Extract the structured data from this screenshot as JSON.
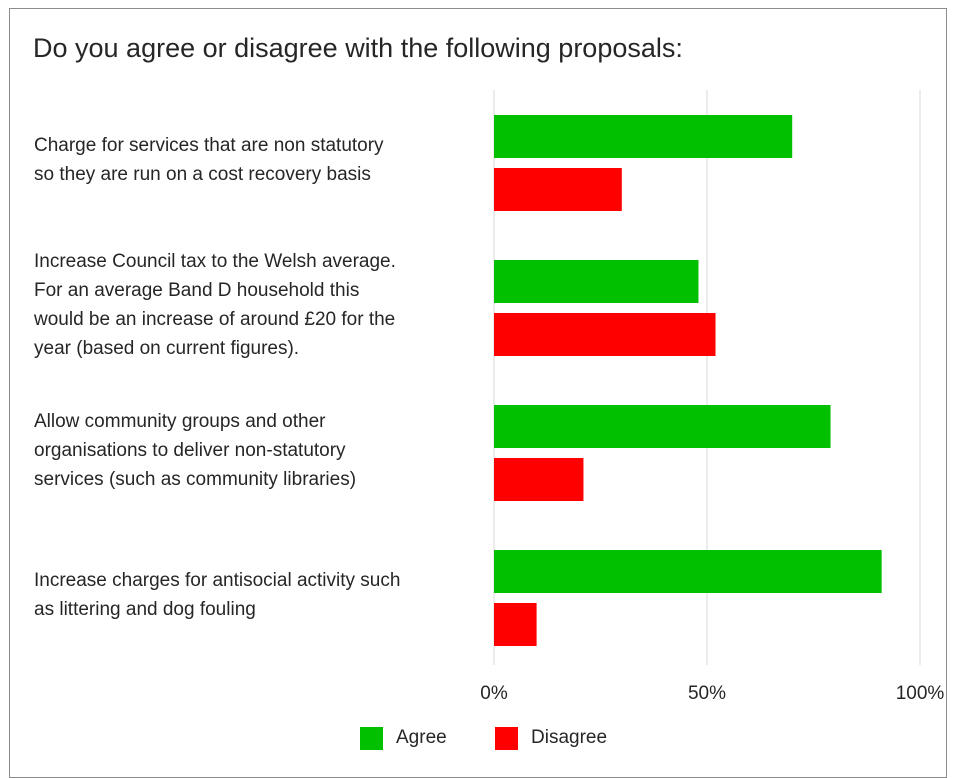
{
  "chart_data": {
    "type": "bar",
    "orientation": "horizontal",
    "title": "Do you agree or disagree with the following proposals:",
    "categories": [
      "Charge for services that are non statutory so they are run on a cost recovery basis",
      "Increase Council tax to the Welsh average. For an average Band D household this would be an increase of around £20 for the year (based on current figures).",
      "Allow community groups and other organisations to deliver non-statutory services (such as community libraries)",
      "Increase charges for antisocial activity such as littering and dog fouling"
    ],
    "category_lines": [
      [
        "Charge for services that are non statutory",
        "so they are run on a cost recovery basis"
      ],
      [
        "Increase Council tax to the Welsh average.",
        "For an average Band D household this",
        "would be an increase of around £20 for the",
        "year (based on current figures)."
      ],
      [
        "Allow community groups and other",
        "organisations to deliver non-statutory",
        "services (such as community libraries)"
      ],
      [
        "Increase charges for antisocial activity such",
        "as littering and dog fouling"
      ]
    ],
    "series": [
      {
        "name": "Agree",
        "color": "#00c000",
        "values": [
          70,
          48,
          79,
          91
        ]
      },
      {
        "name": "Disagree",
        "color": "#ff0000",
        "values": [
          30,
          52,
          21,
          10
        ]
      }
    ],
    "xlim": [
      0,
      100
    ],
    "x_ticks": [
      0,
      50,
      100
    ],
    "x_tick_labels": [
      "0%",
      "50%",
      "100%"
    ],
    "grid": "vertical",
    "legend_position": "bottom"
  }
}
